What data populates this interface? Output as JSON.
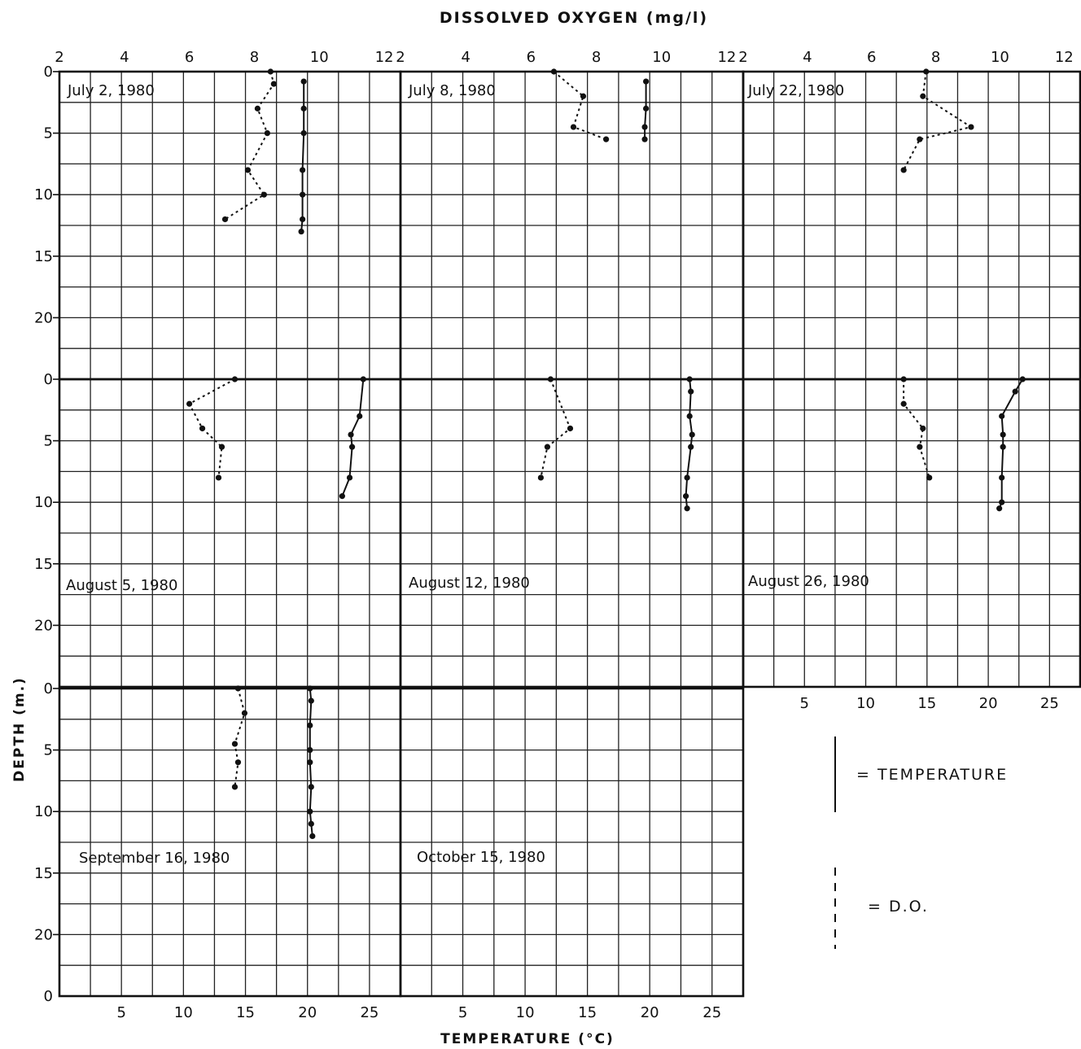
{
  "chart_data": {
    "type": "line",
    "title": "DISSOLVED OXYGEN (mg/l)",
    "xlabel": "TEMPERATURE (°C)",
    "ylabel": "DEPTH (m.)",
    "do_ticks": [
      2,
      4,
      6,
      8,
      10,
      12
    ],
    "temp_ticks": [
      5,
      10,
      15,
      20,
      25
    ],
    "depth_ticks": [
      0,
      5,
      10,
      15,
      20
    ],
    "depth_bottom_label": "0",
    "do_xlim": [
      2,
      12.5
    ],
    "temp_xlim": [
      0,
      27.5
    ],
    "depth_ylim": [
      0,
      25
    ],
    "grid": true,
    "legend": [
      {
        "symbol": "solid",
        "label": "= TEMPERATURE"
      },
      {
        "symbol": "dashed",
        "label": "= D.O."
      }
    ],
    "panels": [
      {
        "label": "July 2, 1980",
        "temperature": {
          "depth": [
            0.8,
            3,
            5,
            8,
            10,
            12,
            13
          ],
          "value": [
            19.7,
            19.7,
            19.7,
            19.6,
            19.6,
            19.6,
            19.5
          ]
        },
        "dissolved_oxygen": {
          "depth": [
            0,
            1,
            3,
            5,
            8,
            10,
            12
          ],
          "value": [
            8.5,
            8.6,
            8.1,
            8.4,
            7.8,
            8.3,
            7.1
          ]
        }
      },
      {
        "label": "July 8, 1980",
        "temperature": {
          "depth": [
            0.8,
            3,
            4.5,
            5.5
          ],
          "value": [
            19.7,
            19.7,
            19.6,
            19.6
          ]
        },
        "dissolved_oxygen": {
          "depth": [
            0,
            2,
            4.5,
            5.5
          ],
          "value": [
            6.7,
            7.6,
            7.3,
            8.3
          ]
        }
      },
      {
        "label": "July 22, 1980",
        "temperature": {
          "depth": [],
          "value": []
        },
        "dissolved_oxygen": {
          "depth": [
            0,
            2,
            4.5,
            5.5,
            8
          ],
          "value": [
            7.7,
            7.6,
            9.1,
            7.5,
            7.0
          ]
        }
      },
      {
        "label": "August 5, 1980",
        "temperature": {
          "depth": [
            0,
            3,
            4.5,
            5.5,
            8,
            9.5
          ],
          "value": [
            24.5,
            24.2,
            23.5,
            23.6,
            23.4,
            22.8
          ]
        },
        "dissolved_oxygen": {
          "depth": [
            0,
            2,
            4,
            5.5,
            8
          ],
          "value": [
            7.4,
            6.0,
            6.4,
            7.0,
            6.9
          ]
        }
      },
      {
        "label": "August 12, 1980",
        "temperature": {
          "depth": [
            0,
            1,
            3,
            4.5,
            5.5,
            8,
            9.5,
            10.5
          ],
          "value": [
            23.2,
            23.3,
            23.2,
            23.4,
            23.3,
            23.0,
            22.9,
            23.0
          ]
        },
        "dissolved_oxygen": {
          "depth": [
            0,
            4,
            5.5,
            8
          ],
          "value": [
            6.6,
            7.2,
            6.5,
            6.3
          ]
        }
      },
      {
        "label": "August 26, 1980",
        "temperature": {
          "depth": [
            0,
            1,
            3,
            4.5,
            5.5,
            8,
            10,
            10.5
          ],
          "value": [
            22.8,
            22.2,
            21.1,
            21.2,
            21.2,
            21.1,
            21.1,
            20.9
          ]
        },
        "dissolved_oxygen": {
          "depth": [
            0,
            2,
            4,
            5.5,
            8
          ],
          "value": [
            7.0,
            7.0,
            7.6,
            7.5,
            7.8
          ]
        }
      },
      {
        "label": "September 16, 1980",
        "temperature": {
          "depth": [
            0,
            1,
            3,
            5,
            6,
            8,
            10,
            11,
            12
          ],
          "value": [
            20.2,
            20.3,
            20.2,
            20.2,
            20.2,
            20.3,
            20.2,
            20.3,
            20.4
          ]
        },
        "dissolved_oxygen": {
          "depth": [
            0,
            2,
            4.5,
            6,
            8
          ],
          "value": [
            7.5,
            7.7,
            7.4,
            7.5,
            7.4
          ]
        }
      },
      {
        "label": "October 15, 1980",
        "temperature": {
          "depth": [],
          "value": []
        },
        "dissolved_oxygen": {
          "depth": [],
          "value": []
        }
      }
    ]
  }
}
